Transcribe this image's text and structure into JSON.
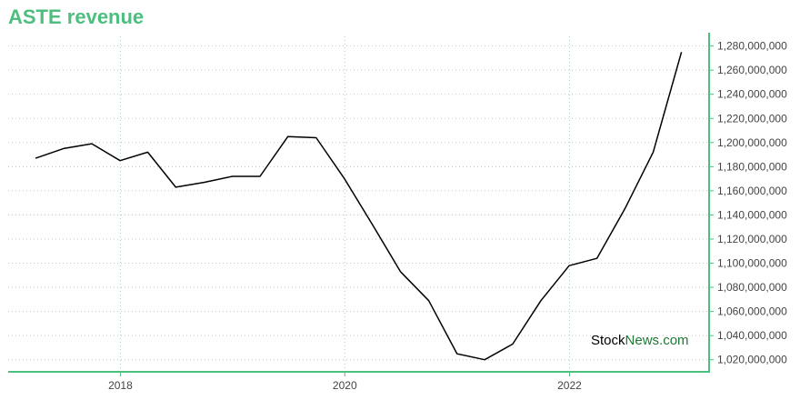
{
  "chart_data": {
    "type": "line",
    "title": "ASTE revenue",
    "xlabel": "",
    "ylabel": "",
    "x": [
      "2017-03-31",
      "2017-06-30",
      "2017-09-30",
      "2017-12-31",
      "2018-03-31",
      "2018-06-30",
      "2018-09-30",
      "2018-12-31",
      "2019-03-31",
      "2019-06-30",
      "2019-09-30",
      "2019-12-31",
      "2020-03-31",
      "2020-06-30",
      "2020-09-30",
      "2020-12-31",
      "2021-03-31",
      "2021-06-30",
      "2021-09-30",
      "2021-12-31",
      "2022-03-31",
      "2022-06-30",
      "2022-09-30",
      "2022-12-31"
    ],
    "series": [
      {
        "values": [
          1187000000,
          1195000000,
          1199000000,
          1185000000,
          1192000000,
          1163000000,
          1167000000,
          1172000000,
          1172000000,
          1205000000,
          1204000000,
          1170000000,
          1132000000,
          1093000000,
          1069000000,
          1025000000,
          1020000000,
          1033000000,
          1069000000,
          1098000000,
          1104000000,
          1145000000,
          1192000000,
          1275000000
        ],
        "color": "#000000"
      }
    ],
    "xlim": [
      "2017-01-01",
      "2023-03-31"
    ],
    "ylim": [
      1010000000,
      1288000000
    ],
    "x_ticks": [
      "2018",
      "2020",
      "2022"
    ],
    "y_ticks": [
      "1,020,000,000",
      "1,040,000,000",
      "1,060,000,000",
      "1,080,000,000",
      "1,100,000,000",
      "1,120,000,000",
      "1,140,000,000",
      "1,160,000,000",
      "1,180,000,000",
      "1,200,000,000",
      "1,220,000,000",
      "1,240,000,000",
      "1,260,000,000",
      "1,280,000,000"
    ],
    "grid": true,
    "axis_color": "#4cbf7f",
    "grid_color": "#9ed8c4"
  },
  "watermark": {
    "part1": "Stock",
    "part2": "News",
    "part3": ".com",
    "color_dark": "#000000",
    "color_green": "#1b7a33"
  }
}
